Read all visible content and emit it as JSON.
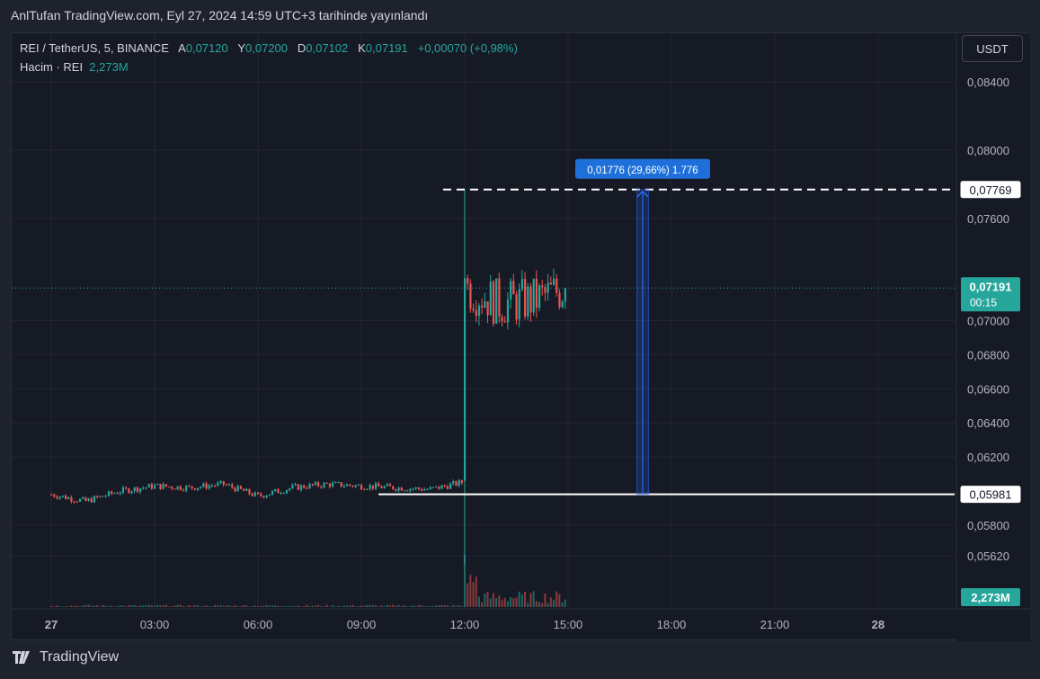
{
  "header": {
    "published": "AnlTufan TradingView.com, Eyl 27, 2024 14:59 UTC+3 tarihinde yayınlandı"
  },
  "legend": {
    "symbol": "REI / TetherUS, 5, BINANCE",
    "o_label": "A",
    "o": "0,07120",
    "h_label": "Y",
    "h": "0,07200",
    "l_label": "D",
    "l": "0,07102",
    "c_label": "K",
    "c": "0,07191",
    "change": "+0,00070 (+0,98%)",
    "volume_label": "Hacim · REI",
    "volume": "2,273M"
  },
  "toolbar": {
    "currency": "USDT"
  },
  "footer": {
    "brand": "TradingView"
  },
  "colors": {
    "up": "#26a69a",
    "down": "#ef5350",
    "accent": "#2962ff",
    "measure_label": "#1e6fd9",
    "background": "#161a25",
    "grid": "#232632"
  },
  "chart_data": {
    "type": "candlestick",
    "timeframe": "5",
    "x_tick_labels": [
      "27",
      "03:00",
      "06:00",
      "09:00",
      "12:00",
      "15:00",
      "18:00",
      "21:00",
      "28"
    ],
    "y_tick_labels": [
      "0,08400",
      "0,08000",
      "0,07600",
      "0,07000",
      "0,06800",
      "0,06600",
      "0,06400",
      "0,06200",
      "0,05800",
      "0,05620"
    ],
    "y_ticks": [
      0.084,
      0.08,
      0.076,
      0.07,
      0.068,
      0.066,
      0.064,
      0.062,
      0.058,
      0.0562
    ],
    "price_labels": {
      "high_line": "0,07769",
      "low_line": "0,05981",
      "last_price": "0,07191",
      "countdown": "00:15",
      "last_volume": "2,273M"
    },
    "levels": {
      "high": 0.07769,
      "low": 0.05981,
      "last": 0.07191
    },
    "measure": {
      "text": "0,01776 (29,66%) 1.776",
      "from_time": "17:00",
      "to_time": "17:20"
    },
    "low_line_start_time": "09:30",
    "series_summary": [
      {
        "time": "00:00",
        "close": 0.0598
      },
      {
        "time": "01:00",
        "close": 0.0594
      },
      {
        "time": "02:00",
        "close": 0.06
      },
      {
        "time": "03:00",
        "close": 0.0603
      },
      {
        "time": "04:00",
        "close": 0.0602
      },
      {
        "time": "05:00",
        "close": 0.0604
      },
      {
        "time": "06:00",
        "close": 0.0597
      },
      {
        "time": "07:00",
        "close": 0.0602
      },
      {
        "time": "08:00",
        "close": 0.0604
      },
      {
        "time": "09:00",
        "close": 0.0603
      },
      {
        "time": "10:00",
        "close": 0.0602
      },
      {
        "time": "11:00",
        "close": 0.0601
      },
      {
        "time": "11:55",
        "close": 0.0605
      },
      {
        "time": "12:00",
        "close": 0.072
      },
      {
        "time": "13:00",
        "close": 0.071
      },
      {
        "time": "14:00",
        "close": 0.0712
      },
      {
        "time": "14:55",
        "close": 0.07191
      }
    ]
  }
}
